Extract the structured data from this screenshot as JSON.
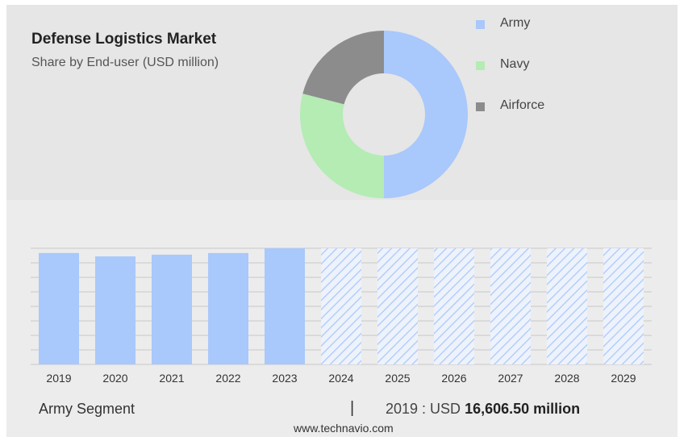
{
  "header": {
    "title": "Defense Logistics Market",
    "subtitle": "Share by End-user (USD million)"
  },
  "chart_data": [
    {
      "type": "pie",
      "donut": true,
      "title": "Defense Logistics Market",
      "subtitle": "Share by End-user (USD million)",
      "labels": [
        "Army",
        "Navy",
        "Airforce"
      ],
      "values": [
        50,
        29,
        21
      ],
      "colors": [
        "#a9c8fb",
        "#b4ecb4",
        "#8c8c8c"
      ],
      "legend_position": "right"
    },
    {
      "type": "bar",
      "categories": [
        "2019",
        "2020",
        "2021",
        "2022",
        "2023",
        "2024",
        "2025",
        "2026",
        "2027",
        "2028",
        "2029"
      ],
      "values": [
        16606.5,
        16100,
        16350,
        16600,
        17300,
        null,
        null,
        null,
        null,
        null,
        null
      ],
      "forecast": [
        false,
        false,
        false,
        false,
        false,
        true,
        true,
        true,
        true,
        true,
        true
      ],
      "forecast_level": 17300,
      "ylim": [
        0,
        17300
      ],
      "color": "#a9c8fb",
      "grid": true
    }
  ],
  "footer": {
    "segment_label": "Army Segment",
    "separator": "|",
    "year_text": "2019 : USD",
    "value_text": "16,606.50 million"
  },
  "source": "www.technavio.com"
}
